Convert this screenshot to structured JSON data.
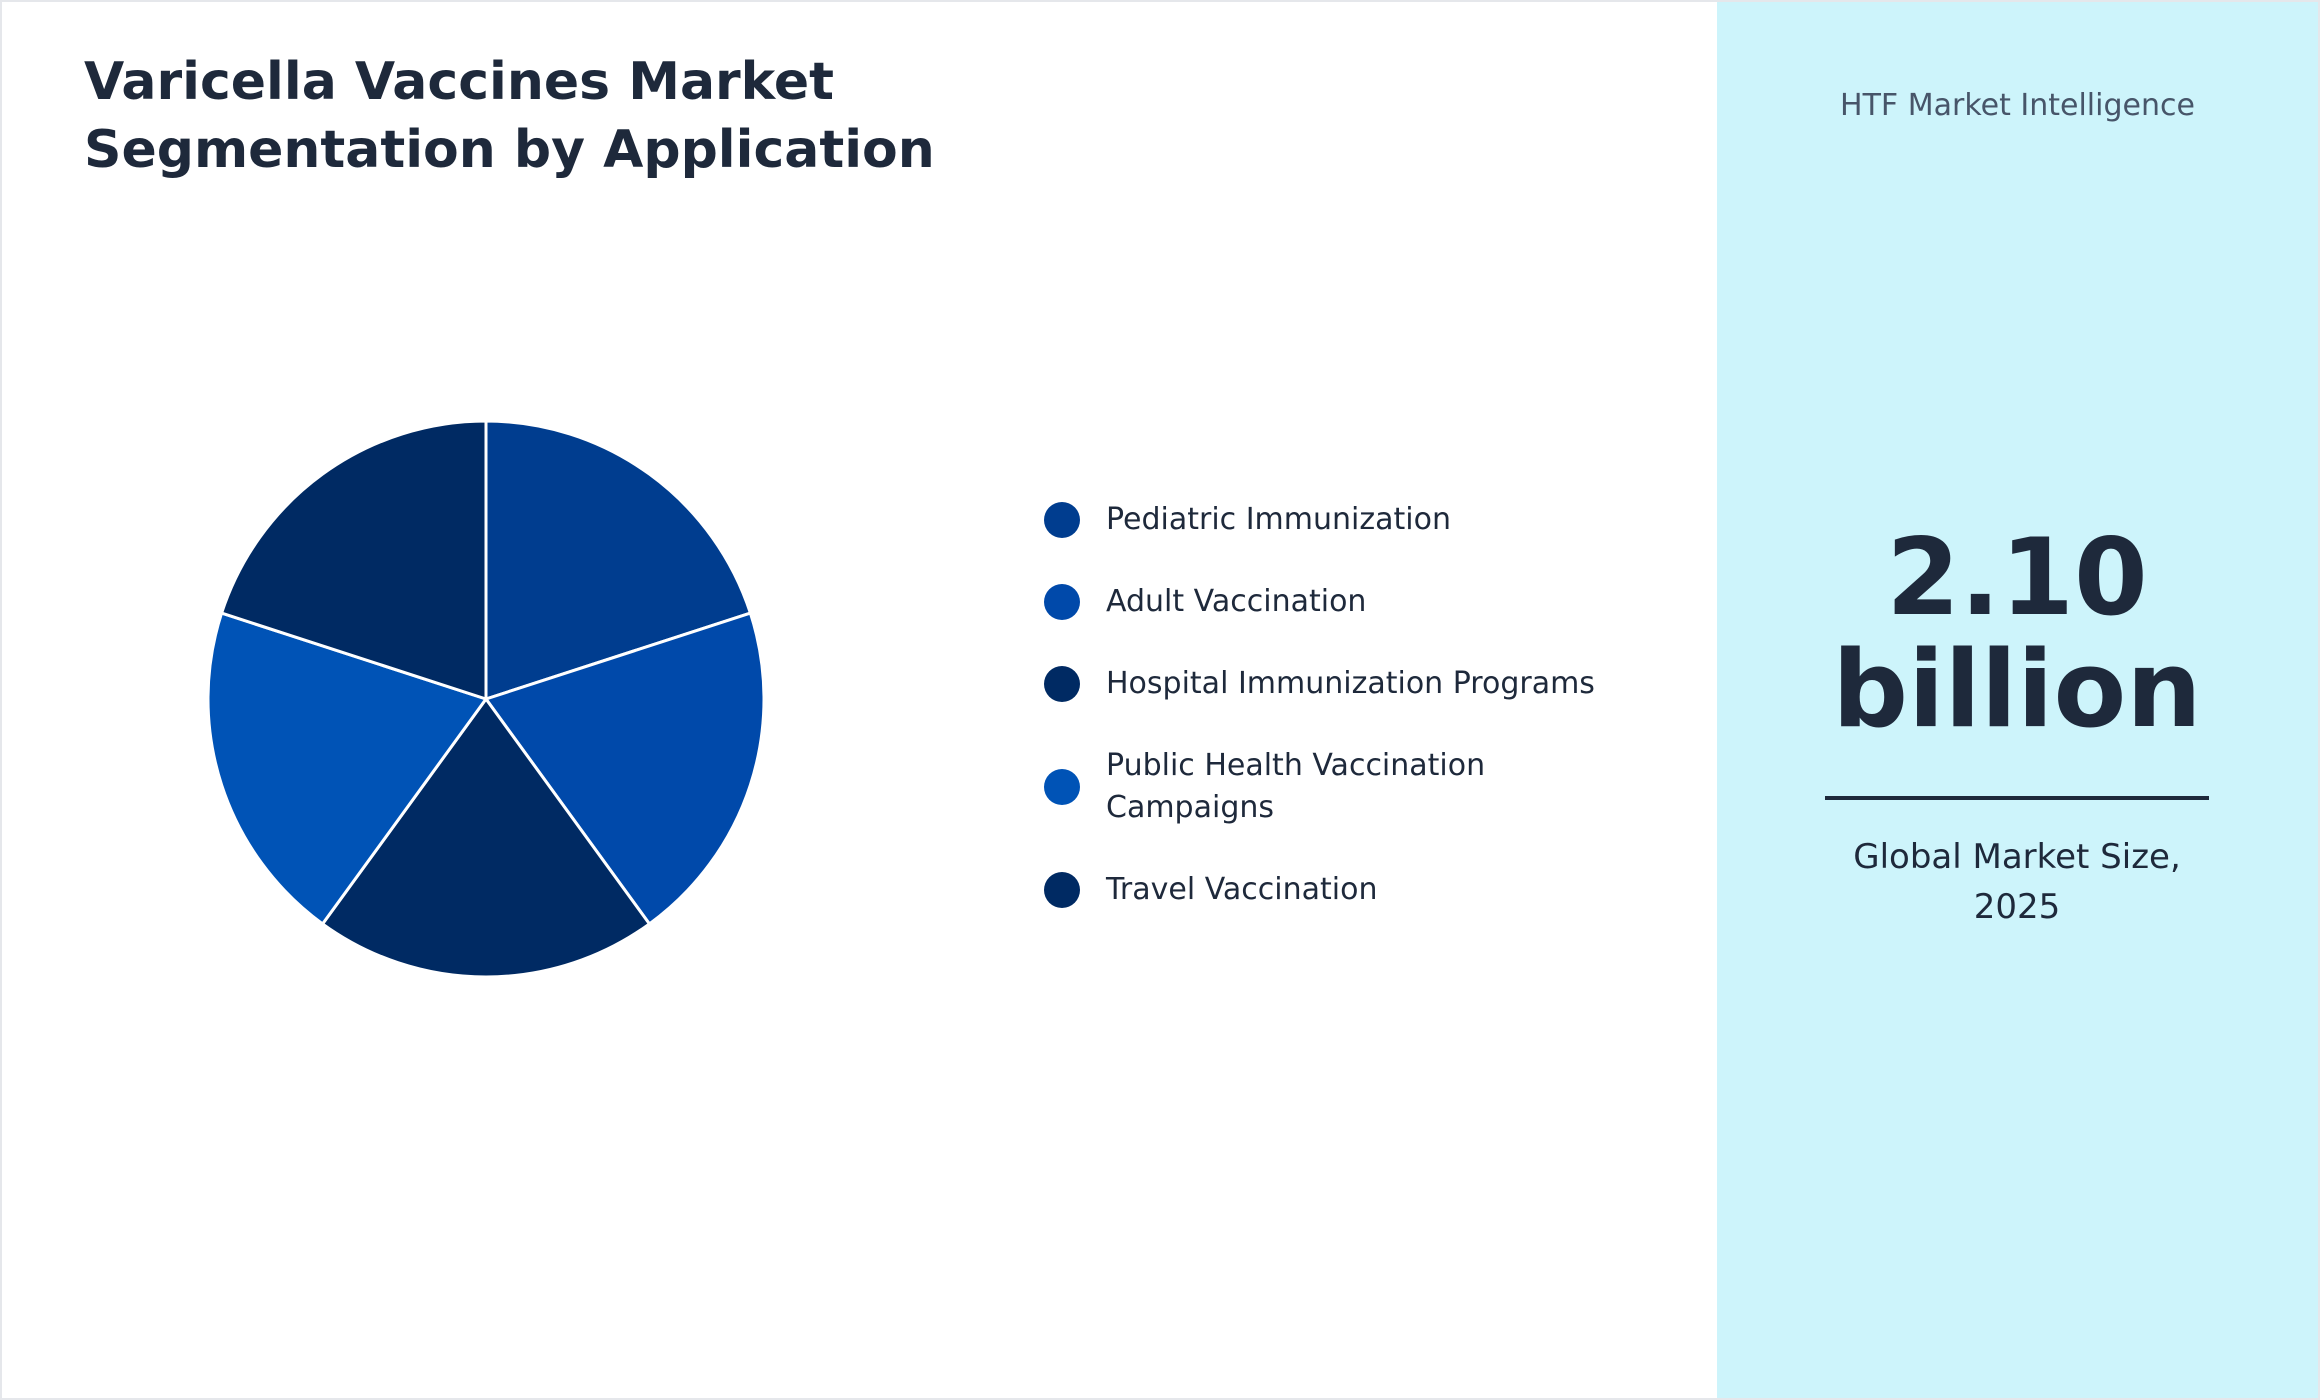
{
  "chart_data": {
    "type": "pie",
    "title": "Varicella Vaccines Market Segmentation by Application",
    "categories": [
      "Pediatric Immunization",
      "Adult Vaccination",
      "Hospital Immunization Programs",
      "Public Health Vaccination Campaigns",
      "Travel Vaccination"
    ],
    "values": [
      20,
      20,
      20,
      20,
      20
    ],
    "colors": [
      "#003d8f",
      "#0049aa",
      "#002a63",
      "#0053b6",
      "#002a63"
    ]
  },
  "sidebar": {
    "logo_alt": "HTF Market Intelligence",
    "market_size": "2.10 billion",
    "caption": "Global Market Size, 2025"
  }
}
